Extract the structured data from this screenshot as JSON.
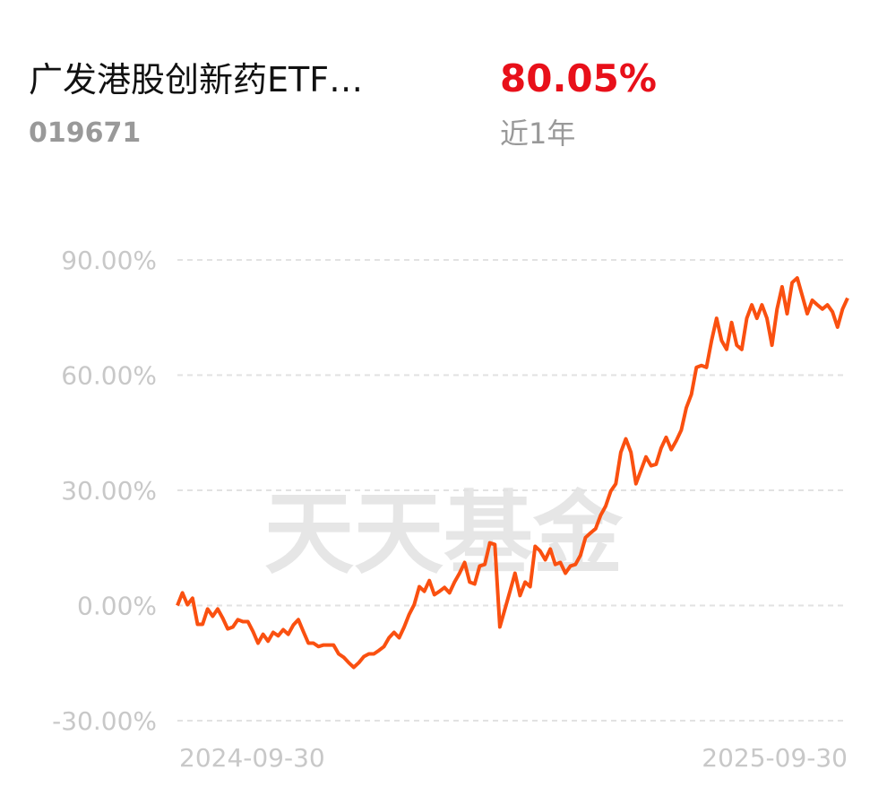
{
  "header": {
    "title": "广发港股创新药ETF…",
    "code": "019671",
    "return": "80.05%",
    "period": "近1年"
  },
  "watermark": "天天基金",
  "chart_data": {
    "type": "line",
    "categories": [
      "2024-09-30",
      null,
      null,
      null,
      null,
      null,
      null,
      null,
      null,
      null,
      null,
      null,
      null,
      null,
      null,
      null,
      null,
      null,
      null,
      null,
      null,
      null,
      null,
      null,
      null,
      null,
      null,
      null,
      null,
      null,
      null,
      null,
      null,
      null,
      null,
      null,
      null,
      null,
      null,
      null,
      null,
      null,
      null,
      null,
      null,
      null,
      null,
      null,
      null,
      null,
      null,
      null,
      null,
      null,
      null,
      null,
      null,
      null,
      null,
      null,
      null,
      null,
      null,
      null,
      null,
      null,
      null,
      null,
      null,
      null,
      null,
      null,
      null,
      null,
      null,
      null,
      null,
      null,
      null,
      null,
      null,
      null,
      null,
      null,
      null,
      null,
      null,
      null,
      null,
      null,
      null,
      null,
      null,
      null,
      null,
      null,
      null,
      null,
      null,
      null,
      null,
      null,
      null,
      null,
      null,
      null,
      null,
      null,
      null,
      null,
      null,
      null,
      null,
      null,
      null,
      null,
      null,
      null,
      null,
      null,
      null,
      null,
      null,
      null,
      null,
      null,
      null,
      null,
      null,
      null,
      null,
      null,
      null,
      "2025-09-30"
    ],
    "values": [
      0,
      3.3,
      0.2,
      1.9,
      -4.9,
      -4.9,
      -0.9,
      -2.8,
      -0.9,
      -3.3,
      -6.1,
      -5.6,
      -3.7,
      -4.2,
      -4.2,
      -6.8,
      -9.8,
      -7.5,
      -9.3,
      -7.0,
      -7.9,
      -6.3,
      -7.5,
      -5.1,
      -3.7,
      -6.8,
      -9.8,
      -9.8,
      -10.7,
      -10.3,
      -10.3,
      -10.3,
      -12.6,
      -13.5,
      -14.9,
      -16.1,
      -14.9,
      -13.3,
      -12.6,
      -12.6,
      -11.7,
      -10.7,
      -8.4,
      -7.0,
      -8.4,
      -5.6,
      -2.3,
      0.2,
      4.9,
      3.7,
      6.5,
      2.8,
      3.7,
      4.7,
      3.3,
      6.1,
      8.4,
      11.2,
      6.1,
      5.6,
      10.3,
      10.7,
      16.3,
      15.9,
      -5.6,
      -0.9,
      3.7,
      8.4,
      2.6,
      6.1,
      4.9,
      15.4,
      14.2,
      11.9,
      14.7,
      10.7,
      11.2,
      8.4,
      10.3,
      10.7,
      13.1,
      17.7,
      18.9,
      20.0,
      23.5,
      25.9,
      29.8,
      31.7,
      39.9,
      43.4,
      39.9,
      31.7,
      35.2,
      38.7,
      36.4,
      36.8,
      41.0,
      43.8,
      40.6,
      42.9,
      45.7,
      51.5,
      55.0,
      62.0,
      62.5,
      62.0,
      69.0,
      74.8,
      69.0,
      66.7,
      73.7,
      67.8,
      66.7,
      74.8,
      78.3,
      74.8,
      78.3,
      74.8,
      67.8,
      77.2,
      83.0,
      76.0,
      84.1,
      85.3,
      80.7,
      76.0,
      79.5,
      78.3,
      77.2,
      78.3,
      76.5,
      72.5,
      77.2,
      80.05
    ],
    "color": "#fa5010",
    "ylim": [
      -30,
      90
    ],
    "yticks": [
      {
        "value": -30,
        "label": "-30.00%"
      },
      {
        "value": 0,
        "label": "0.00%"
      },
      {
        "value": 30,
        "label": "30.00%"
      },
      {
        "value": 60,
        "label": "60.00%"
      },
      {
        "value": 90,
        "label": "90.00%"
      }
    ],
    "grid": true
  }
}
